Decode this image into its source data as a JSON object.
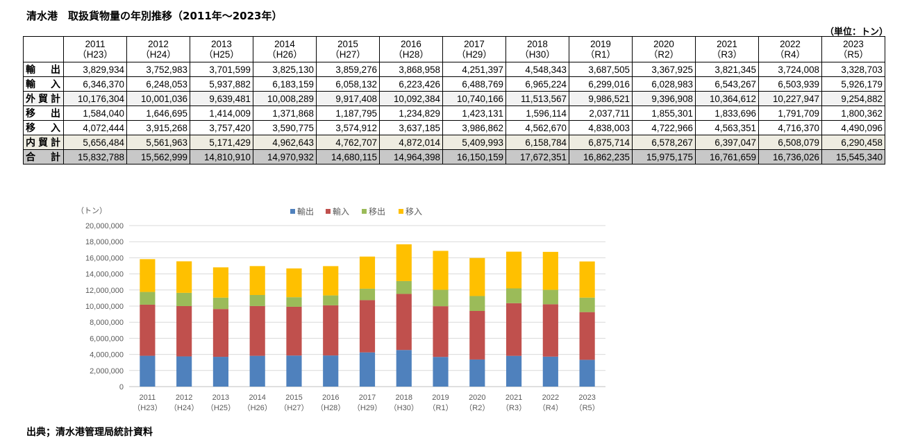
{
  "title": "清水港　取扱貨物量の年別推移（2011年～2023年）",
  "unit": "（単位：トン）",
  "source": "出典；清水港管理局統計資料",
  "table": {
    "years": [
      {
        "year": "2011",
        "era": "（H23）"
      },
      {
        "year": "2012",
        "era": "（H24）"
      },
      {
        "year": "2013",
        "era": "（H25）"
      },
      {
        "year": "2014",
        "era": "（H26）"
      },
      {
        "year": "2015",
        "era": "（H27）"
      },
      {
        "year": "2016",
        "era": "（H28）"
      },
      {
        "year": "2017",
        "era": "（H29）"
      },
      {
        "year": "2018",
        "era": "（H30）"
      },
      {
        "year": "2019",
        "era": "（R1）"
      },
      {
        "year": "2020",
        "era": "（R2）"
      },
      {
        "year": "2021",
        "era": "（R3）"
      },
      {
        "year": "2022",
        "era": "（R4）"
      },
      {
        "year": "2023",
        "era": "（R5）"
      }
    ],
    "rows": [
      {
        "label": "輸出",
        "values": [
          "3,829,934",
          "3,752,983",
          "3,701,599",
          "3,825,130",
          "3,859,276",
          "3,868,958",
          "4,251,397",
          "4,548,343",
          "3,687,505",
          "3,367,925",
          "3,821,345",
          "3,724,008",
          "3,328,703"
        ]
      },
      {
        "label": "輸入",
        "values": [
          "6,346,370",
          "6,248,053",
          "5,937,882",
          "6,183,159",
          "6,058,132",
          "6,223,426",
          "6,488,769",
          "6,965,224",
          "6,299,016",
          "6,028,983",
          "6,543,267",
          "6,503,939",
          "5,926,179"
        ]
      },
      {
        "label": "外貿計",
        "values": [
          "10,176,304",
          "10,001,036",
          "9,639,481",
          "10,008,289",
          "9,917,408",
          "10,092,384",
          "10,740,166",
          "11,513,567",
          "9,986,521",
          "9,396,908",
          "10,364,612",
          "10,227,947",
          "9,254,882"
        ]
      },
      {
        "label": "移出",
        "values": [
          "1,584,040",
          "1,646,695",
          "1,414,009",
          "1,371,868",
          "1,187,795",
          "1,234,829",
          "1,423,131",
          "1,596,114",
          "2,037,711",
          "1,855,301",
          "1,833,696",
          "1,791,709",
          "1,800,362"
        ]
      },
      {
        "label": "移入",
        "values": [
          "4,072,444",
          "3,915,268",
          "3,757,420",
          "3,590,775",
          "3,574,912",
          "3,637,185",
          "3,986,862",
          "4,562,670",
          "4,838,003",
          "4,722,966",
          "4,563,351",
          "4,716,370",
          "4,490,096"
        ]
      },
      {
        "label": "内貿計",
        "values": [
          "5,656,484",
          "5,561,963",
          "5,171,429",
          "4,962,643",
          "4,762,707",
          "4,872,014",
          "5,409,993",
          "6,158,784",
          "6,875,714",
          "6,578,267",
          "6,397,047",
          "6,508,079",
          "6,290,458"
        ]
      },
      {
        "label": "合計",
        "values": [
          "15,832,788",
          "15,562,999",
          "14,810,910",
          "14,970,932",
          "14,680,115",
          "14,964,398",
          "16,150,159",
          "17,672,351",
          "16,862,235",
          "15,975,175",
          "16,761,659",
          "16,736,026",
          "15,545,340"
        ]
      }
    ]
  },
  "chart_data": {
    "type": "bar",
    "stacked": true,
    "ylabel": "（トン）",
    "ylim": [
      0,
      20000000
    ],
    "yticks": [
      "0",
      "2,000,000",
      "4,000,000",
      "6,000,000",
      "8,000,000",
      "10,000,000",
      "12,000,000",
      "14,000,000",
      "16,000,000",
      "18,000,000",
      "20,000,000"
    ],
    "yticks_values": [
      0,
      2000000,
      4000000,
      6000000,
      8000000,
      10000000,
      12000000,
      14000000,
      16000000,
      18000000,
      20000000
    ],
    "grid": true,
    "legend_position": "top",
    "categories": [
      {
        "year": "2011",
        "era": "（H23）"
      },
      {
        "year": "2012",
        "era": "（H24）"
      },
      {
        "year": "2013",
        "era": "（H25）"
      },
      {
        "year": "2014",
        "era": "（H26）"
      },
      {
        "year": "2015",
        "era": "（H27）"
      },
      {
        "year": "2016",
        "era": "（H28）"
      },
      {
        "year": "2017",
        "era": "（H29）"
      },
      {
        "year": "2018",
        "era": "（H30）"
      },
      {
        "year": "2019",
        "era": "（R1）"
      },
      {
        "year": "2020",
        "era": "（R2）"
      },
      {
        "year": "2021",
        "era": "（R3）"
      },
      {
        "year": "2022",
        "era": "（R4）"
      },
      {
        "year": "2023",
        "era": "（R5）"
      }
    ],
    "series": [
      {
        "name": "輸出",
        "color": "#4f81bd",
        "values": [
          3829934,
          3752983,
          3701599,
          3825130,
          3859276,
          3868958,
          4251397,
          4548343,
          3687505,
          3367925,
          3821345,
          3724008,
          3328703
        ]
      },
      {
        "name": "輸入",
        "color": "#c0504d",
        "values": [
          6346370,
          6248053,
          5937882,
          6183159,
          6058132,
          6223426,
          6488769,
          6965224,
          6299016,
          6028983,
          6543267,
          6503939,
          5926179
        ]
      },
      {
        "name": "移出",
        "color": "#9bbb59",
        "values": [
          1584040,
          1646695,
          1414009,
          1371868,
          1187795,
          1234829,
          1423131,
          1596114,
          2037711,
          1855301,
          1833696,
          1791709,
          1800362
        ]
      },
      {
        "name": "移入",
        "color": "#ffc000",
        "values": [
          4072444,
          3915268,
          3757420,
          3590775,
          3574912,
          3637185,
          3986862,
          4562670,
          4838003,
          4722966,
          4563351,
          4716370,
          4490096
        ]
      }
    ]
  }
}
